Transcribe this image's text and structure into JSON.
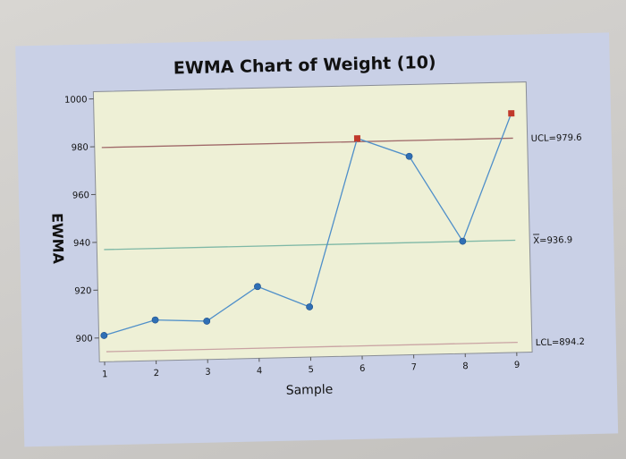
{
  "chart_data": {
    "type": "line",
    "title": "EWMA Chart of Weight (10)",
    "xlabel": "Sample",
    "ylabel": "EWMA",
    "x": [
      1,
      2,
      3,
      4,
      5,
      6,
      7,
      8,
      9
    ],
    "ylim": [
      890,
      1003
    ],
    "xlim": [
      0.9,
      9.3
    ],
    "yticks": [
      900,
      920,
      940,
      960,
      980,
      1000
    ],
    "ytick_labels": [
      "900",
      "920",
      "940",
      "960",
      "980",
      "1000"
    ],
    "xtick_labels": [
      "1",
      "2",
      "3",
      "4",
      "5",
      "6",
      "7",
      "8",
      "9"
    ],
    "series": [
      {
        "name": "",
        "values": [
          901,
          907,
          906,
          920,
          911,
          981,
          973,
          937,
          990
        ]
      }
    ],
    "out_of_control_points": [
      6,
      9
    ],
    "reference_lines": [
      {
        "name": "UCL",
        "label": "UCL=979.6",
        "value": 979.6,
        "color": "#a06a6a"
      },
      {
        "name": "center",
        "label": "X=936.9",
        "value": 936.9,
        "color": "#7fb8a6"
      },
      {
        "name": "LCL",
        "label": "LCL=894.2",
        "value": 894.2,
        "color": "#c9a3a3"
      }
    ],
    "colors": {
      "line": "#4f8fc9",
      "point": "#2f6fb5",
      "out_of_control_point": "#c0392b",
      "plot_background": "#eef0d6",
      "frame": "#c9d0e6"
    },
    "grid": false,
    "legend": "none"
  }
}
